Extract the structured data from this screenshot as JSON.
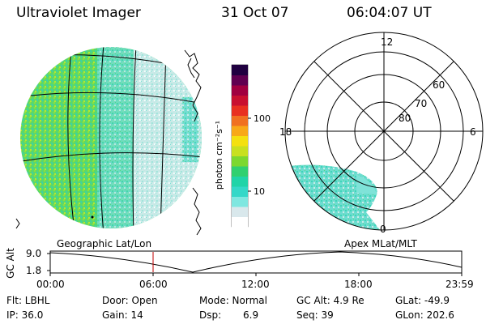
{
  "header": {
    "instrument": "Ultraviolet Imager",
    "date": "31 Oct 07",
    "time": "06:04:07 UT"
  },
  "colorbar": {
    "unit_label": "photon cm⁻²s⁻¹",
    "ticks": [
      "100",
      "10"
    ],
    "scale": "log",
    "colors": [
      "#ffffff",
      "#d9e8ec",
      "#7fe7e0",
      "#34d8c8",
      "#20d4a8",
      "#30d070",
      "#7cd830",
      "#c8e020",
      "#f4e010",
      "#f8a818",
      "#f07020",
      "#e83020",
      "#c81030",
      "#a00040",
      "#600050",
      "#200040"
    ]
  },
  "polar_plot": {
    "mlt_labels": [
      "12",
      "18",
      "6",
      "0"
    ],
    "mlat_labels": [
      "60",
      "70",
      "80"
    ]
  },
  "panel_labels": {
    "left": "Geographic Lat/Lon",
    "right": "Apex  MLat/MLT"
  },
  "altitude_plot": {
    "ylabel": "GC Alt",
    "yticks": [
      "9.0",
      "1.8"
    ],
    "xticks": [
      "00:00",
      "06:00",
      "12:00",
      "18:00",
      "23:59"
    ]
  },
  "info": {
    "flt": "Flt: LBHL",
    "door": "Door: Open",
    "mode": "Mode: Normal",
    "gcalt": "GC Alt: 4.9 Re",
    "glat": "GLat: -49.9",
    "ip": "IP: 36.0",
    "gain": "Gain: 14",
    "dsp_label": "Dsp:",
    "dsp_value": "6.9",
    "seq": "Seq: 39",
    "glon": "GLon: 202.6"
  }
}
